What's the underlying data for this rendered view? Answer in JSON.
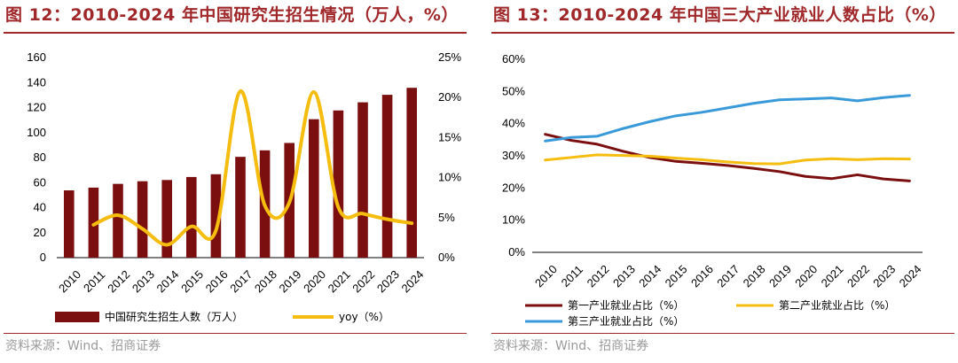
{
  "left": {
    "title": "图 12：2010-2024 年中国研究生招生情况（万人，%）",
    "source": "资料来源：Wind、招商证券",
    "colors": {
      "bar": "#7b0f10",
      "line": "#f5bd10",
      "title": "#a0282a"
    },
    "chart_data": {
      "type": "bar",
      "title": "2010-2024 年中国研究生招生情况（万人，%）",
      "categories": [
        "2010",
        "2011",
        "2012",
        "2013",
        "2014",
        "2015",
        "2016",
        "2017",
        "2018",
        "2019",
        "2020",
        "2021",
        "2022",
        "2023",
        "2024"
      ],
      "series": [
        {
          "name": "中国研究生招生人数（万人）",
          "type": "bar",
          "axis": "left",
          "values": [
            53.8,
            56.0,
            59.0,
            61.1,
            62.1,
            64.5,
            66.7,
            80.6,
            85.8,
            91.7,
            110.7,
            117.7,
            124.2,
            130.2,
            135.8
          ]
        },
        {
          "name": "yoy（%）",
          "type": "line",
          "axis": "right",
          "values": [
            null,
            4.1,
            5.3,
            3.6,
            1.6,
            3.9,
            3.4,
            20.8,
            6.5,
            6.9,
            20.7,
            6.3,
            5.5,
            4.8,
            4.3
          ]
        }
      ],
      "y_left": {
        "range": [
          0,
          160
        ],
        "ticks": [
          "0",
          "20",
          "40",
          "60",
          "80",
          "100",
          "120",
          "140",
          "160"
        ]
      },
      "y_right": {
        "range": [
          0,
          25
        ],
        "ticks": [
          "0%",
          "5%",
          "10%",
          "15%",
          "20%",
          "25%"
        ]
      },
      "legend": [
        "中国研究生招生人数（万人）",
        "yoy（%）"
      ],
      "legend_position": "bottom"
    }
  },
  "right": {
    "title": "图 13：2010-2024 年中国三大产业就业人数占比（%）",
    "source": "资料来源：Wind、招商证券",
    "colors": {
      "primary": "#7b0f10",
      "secondary": "#f5bd10",
      "tertiary": "#3a9ad9"
    },
    "chart_data": {
      "type": "line",
      "title": "2010-2024 年中国三大产业就业人数占比（%）",
      "categories": [
        "2010",
        "2011",
        "2012",
        "2013",
        "2014",
        "2015",
        "2016",
        "2017",
        "2018",
        "2019",
        "2020",
        "2021",
        "2022",
        "2023",
        "2024"
      ],
      "series": [
        {
          "name": "第一产业就业占比（%）",
          "values": [
            36.7,
            34.8,
            33.6,
            31.4,
            29.5,
            28.3,
            27.7,
            27.0,
            26.1,
            25.1,
            23.6,
            22.9,
            24.1,
            22.8,
            22.2
          ]
        },
        {
          "name": "第二产业就业占比（%）",
          "values": [
            28.7,
            29.5,
            30.3,
            30.1,
            29.9,
            29.3,
            28.8,
            28.1,
            27.6,
            27.5,
            28.7,
            29.1,
            28.8,
            29.1,
            29.0
          ]
        },
        {
          "name": "第三产业就业占比（%）",
          "values": [
            34.6,
            35.7,
            36.1,
            38.5,
            40.6,
            42.4,
            43.5,
            44.9,
            46.3,
            47.4,
            47.7,
            48.0,
            47.1,
            48.1,
            48.8
          ]
        }
      ],
      "y": {
        "range": [
          0,
          60
        ],
        "ticks": [
          "0%",
          "10%",
          "20%",
          "30%",
          "40%",
          "50%",
          "60%"
        ]
      },
      "legend": [
        "第一产业就业占比（%）",
        "第二产业就业占比（%）",
        "第三产业就业占比（%）"
      ],
      "legend_position": "bottom"
    }
  }
}
